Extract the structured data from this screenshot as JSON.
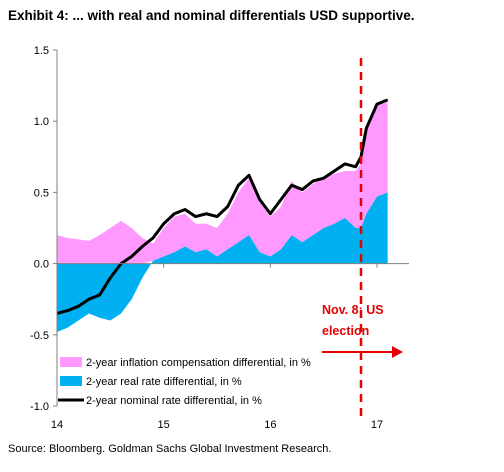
{
  "title": "Exhibit 4: ... with real and nominal differentials USD supportive.",
  "source": "Source: Bloomberg. Goldman Sachs Global Investment Research.",
  "colors": {
    "inflation": "#ff99ff",
    "real": "#00b0f0",
    "nominal": "#000000",
    "event": "#e60000"
  },
  "chart_data": {
    "type": "area",
    "title": "Exhibit 4: ... with real and nominal differentials USD supportive.",
    "xlabel": "",
    "ylabel": "",
    "x_ticks": [
      "14",
      "15",
      "16",
      "17"
    ],
    "y_ticks": [
      "1.5",
      "1.0",
      "0.5",
      "0.0",
      "-0.5",
      "-1.0"
    ],
    "xlim": [
      14,
      17.3
    ],
    "ylim": [
      -1.0,
      1.5
    ],
    "grid": false,
    "legend_position": "bottom-left",
    "annotation": {
      "label_line1": "Nov. 8: US",
      "label_line2": "election",
      "x": 16.85
    },
    "x": [
      14.0,
      14.1,
      14.2,
      14.3,
      14.4,
      14.5,
      14.6,
      14.7,
      14.8,
      14.9,
      15.0,
      15.1,
      15.2,
      15.3,
      15.4,
      15.5,
      15.6,
      15.7,
      15.8,
      15.9,
      16.0,
      16.1,
      16.2,
      16.3,
      16.4,
      16.5,
      16.6,
      16.7,
      16.8,
      16.85,
      16.9,
      17.0,
      17.1
    ],
    "series": [
      {
        "name": "2-year inflation compensation differential, in %",
        "values": [
          0.2,
          0.18,
          0.17,
          0.16,
          0.2,
          0.25,
          0.3,
          0.25,
          0.18,
          0.12,
          0.2,
          0.25,
          0.23,
          0.2,
          0.18,
          0.2,
          0.25,
          0.35,
          0.4,
          0.35,
          0.28,
          0.3,
          0.38,
          0.35,
          0.36,
          0.35,
          0.35,
          0.33,
          0.4,
          0.45,
          0.6,
          0.65,
          0.63
        ]
      },
      {
        "name": "2-year real rate differential, in %",
        "values": [
          -0.48,
          -0.45,
          -0.4,
          -0.35,
          -0.38,
          -0.4,
          -0.35,
          -0.25,
          -0.1,
          0.02,
          0.05,
          0.08,
          0.12,
          0.08,
          0.1,
          0.05,
          0.1,
          0.15,
          0.2,
          0.08,
          0.05,
          0.1,
          0.2,
          0.15,
          0.2,
          0.25,
          0.28,
          0.32,
          0.25,
          0.25,
          0.35,
          0.47,
          0.5
        ]
      },
      {
        "name": "2-year nominal rate differential, in %",
        "values": [
          -0.35,
          -0.33,
          -0.3,
          -0.25,
          -0.22,
          -0.1,
          0.0,
          0.05,
          0.12,
          0.18,
          0.28,
          0.35,
          0.38,
          0.33,
          0.35,
          0.33,
          0.4,
          0.55,
          0.62,
          0.45,
          0.35,
          0.45,
          0.55,
          0.52,
          0.58,
          0.6,
          0.65,
          0.7,
          0.68,
          0.75,
          0.95,
          1.12,
          1.15
        ]
      }
    ]
  }
}
